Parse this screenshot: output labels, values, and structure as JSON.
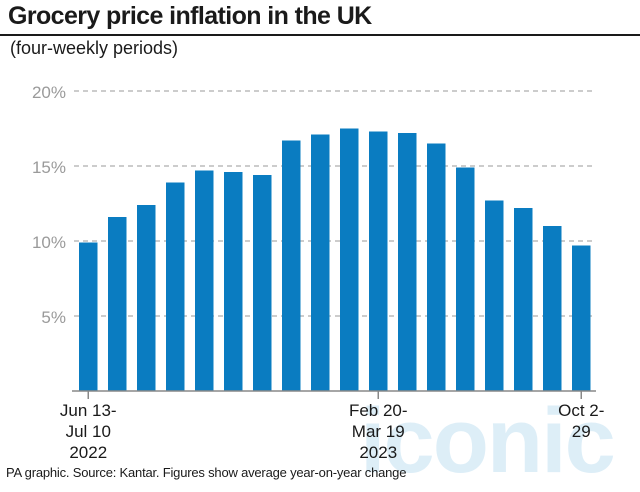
{
  "header": {
    "title": "Grocery price inflation in the UK",
    "subtitle": "(four-weekly periods)"
  },
  "footer": {
    "source": "PA graphic. Source: Kantar. Figures show average year-on-year change"
  },
  "watermark": {
    "text": "iconic"
  },
  "colors": {
    "bar": "#0a7cc1",
    "grid": "#9a9a9a",
    "tick_text": "#9a9a9a",
    "axis": "#888888",
    "watermark": "#cfe7f5"
  },
  "chart_data": {
    "type": "bar",
    "title": "Grocery price inflation in the UK",
    "subtitle": "(four-weekly periods)",
    "xlabel": "",
    "ylabel": "",
    "ylim": [
      0,
      20
    ],
    "yticks": [
      5,
      10,
      15,
      20
    ],
    "ytick_labels": [
      "5%",
      "10%",
      "15%",
      "20%"
    ],
    "grid": true,
    "legend": "none",
    "values": [
      9.9,
      11.6,
      12.4,
      13.9,
      14.7,
      14.6,
      14.4,
      16.7,
      17.1,
      17.5,
      17.3,
      17.2,
      16.5,
      14.9,
      12.7,
      12.2,
      11.0,
      9.7
    ],
    "x_labels": [
      {
        "index": 0,
        "lines": [
          "Jun 13-",
          "Jul 10",
          "2022"
        ]
      },
      {
        "index": 10,
        "lines": [
          "Feb 20-",
          "Mar 19",
          "2023"
        ]
      },
      {
        "index": 17,
        "lines": [
          "Oct 2-",
          "29"
        ]
      }
    ]
  }
}
